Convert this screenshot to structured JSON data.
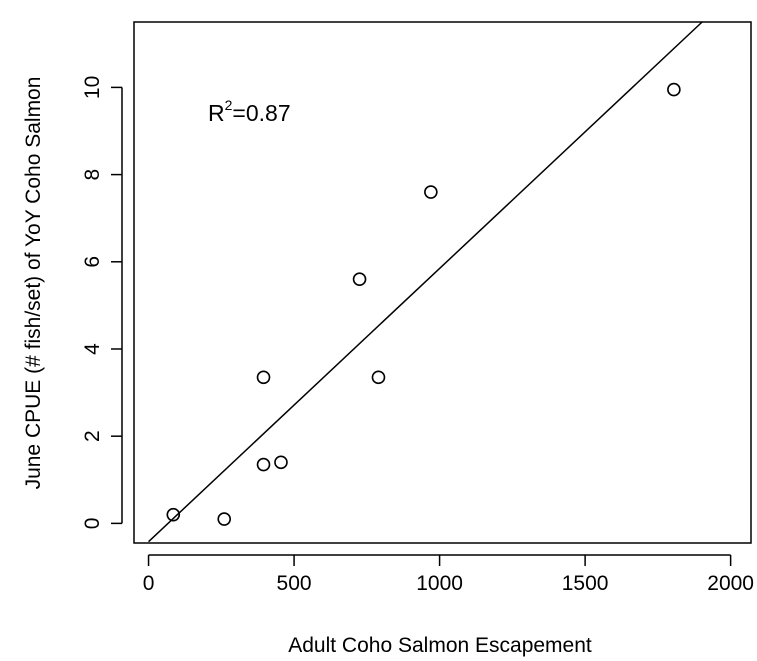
{
  "chart_data": {
    "type": "scatter",
    "title": "",
    "xlabel": "Adult Coho Salmon Escapement",
    "ylabel": "June CPUE (# fish/set) of YoY Coho Salmon",
    "xlim": [
      -50,
      2070
    ],
    "ylim": [
      -0.45,
      11.5
    ],
    "x_ticks": [
      0,
      500,
      1000,
      1500,
      2000
    ],
    "y_ticks": [
      0,
      2,
      4,
      6,
      8,
      10
    ],
    "x_tick_labels": [
      "0",
      "500",
      "1000",
      "1500",
      "2000"
    ],
    "y_tick_labels": [
      "0",
      "2",
      "4",
      "6",
      "8",
      "10"
    ],
    "points": [
      {
        "x": 85,
        "y": 0.2
      },
      {
        "x": 260,
        "y": 0.1
      },
      {
        "x": 395,
        "y": 1.35
      },
      {
        "x": 455,
        "y": 1.4
      },
      {
        "x": 395,
        "y": 3.35
      },
      {
        "x": 790,
        "y": 3.35
      },
      {
        "x": 725,
        "y": 5.6
      },
      {
        "x": 970,
        "y": 7.6
      },
      {
        "x": 1805,
        "y": 9.95
      }
    ],
    "fit_line": {
      "x1": 0,
      "y1": -0.42,
      "x2": 1902,
      "y2": 11.5
    },
    "annotation": {
      "base": "R",
      "superscript": "2",
      "rest": "=0.87"
    },
    "grid": false,
    "legend": "none",
    "marker": "open-circle",
    "color": "#000000"
  }
}
